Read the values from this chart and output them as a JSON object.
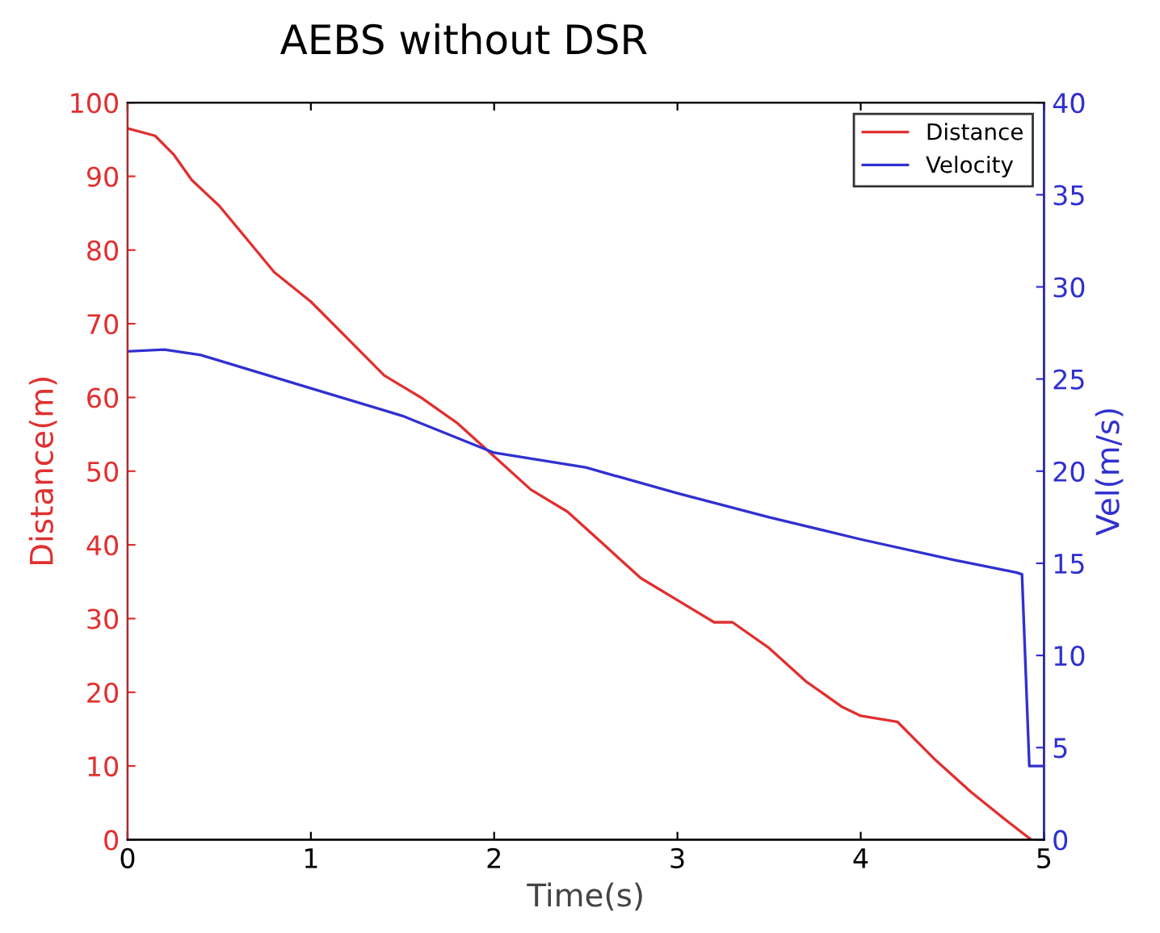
{
  "chart_data": {
    "type": "line",
    "title": "AEBS without DSR",
    "xlabel": "Time(s)",
    "ylabel": "Distance(m)",
    "y2label": "Vel(m/s)",
    "xlim": [
      0,
      5
    ],
    "xticks": [
      0,
      1,
      2,
      3,
      4,
      5
    ],
    "ylim": [
      0,
      100
    ],
    "yticks": [
      0,
      10,
      20,
      30,
      40,
      50,
      60,
      70,
      80,
      90,
      100
    ],
    "y2lim": [
      0,
      40
    ],
    "y2ticks": [
      0,
      5,
      10,
      15,
      20,
      25,
      30,
      35,
      40
    ],
    "legend": "top right",
    "grid": false,
    "series": [
      {
        "name": "Distance",
        "color": "#e03030",
        "axis": "y",
        "x": [
          0,
          0.15,
          0.25,
          0.35,
          0.5,
          0.7,
          0.8,
          1.0,
          1.2,
          1.4,
          1.6,
          1.8,
          2.0,
          2.2,
          2.4,
          2.6,
          2.8,
          3.0,
          3.2,
          3.3,
          3.5,
          3.7,
          3.9,
          4.0,
          4.2,
          4.4,
          4.6,
          4.8,
          4.93
        ],
        "values": [
          96.5,
          95.5,
          93,
          89.5,
          86,
          80,
          77,
          73,
          68,
          63,
          60,
          56.5,
          52,
          47.5,
          44.5,
          40,
          35.5,
          32.5,
          29.5,
          29.5,
          26,
          21.5,
          18,
          16.8,
          16,
          11,
          6.5,
          2.5,
          0
        ]
      },
      {
        "name": "Velocity",
        "color": "#3030d0",
        "axis": "y2",
        "x": [
          0,
          0.2,
          0.4,
          0.6,
          1.0,
          1.5,
          2.0,
          2.5,
          3.0,
          3.5,
          4.0,
          4.5,
          4.85,
          4.88,
          4.92,
          5.0
        ],
        "values": [
          26.5,
          26.6,
          26.3,
          25.7,
          24.5,
          23,
          21,
          20.2,
          18.8,
          17.5,
          16.3,
          15.2,
          14.5,
          14.4,
          4,
          4
        ]
      }
    ]
  }
}
